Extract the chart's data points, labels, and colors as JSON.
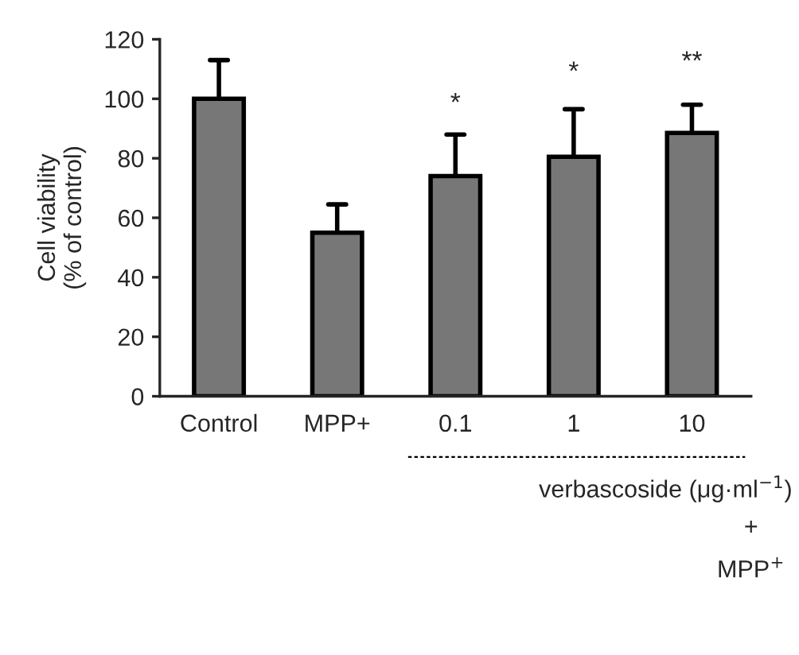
{
  "chart_data": {
    "type": "bar",
    "ylabel": "Cell viability\n(% of control)",
    "xlabel": "verbascoside (μg·ml$^{−1}$)",
    "categories": [
      "Control",
      "MPP+",
      "0.1",
      "1",
      "10"
    ],
    "values": [
      100,
      55,
      74,
      80.5,
      88.5
    ],
    "errors": [
      [
        100,
        113
      ],
      [
        55,
        64.5
      ],
      [
        74,
        88
      ],
      [
        80.5,
        96.5
      ],
      [
        88.5,
        98
      ]
    ],
    "color": "#777777",
    "ylim": [
      0,
      120
    ],
    "yticks": [
      0,
      20,
      40,
      60,
      80,
      100,
      120
    ],
    "grid": false,
    "legend": false,
    "annotations": [
      "*",
      "*",
      "**",
      "+",
      "MPP$^{+}$"
    ]
  }
}
